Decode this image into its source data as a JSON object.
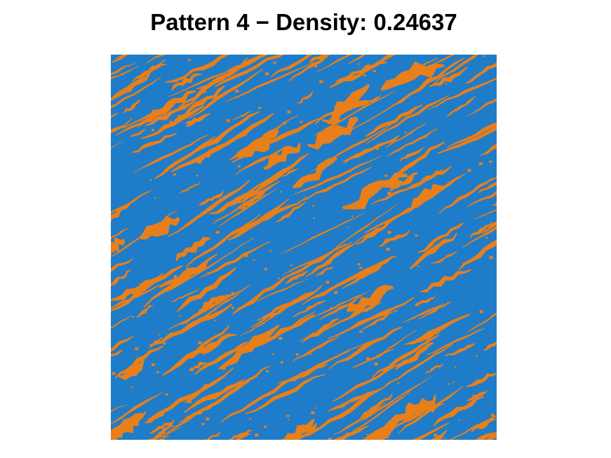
{
  "title": "Pattern 4 − Density: 0.24637",
  "pattern": {
    "density": 0.24637,
    "background_color": "#1f7cc8",
    "foreground_color": "#e87f1a",
    "orientation": "diagonal streaks rising from lower-left to upper-right"
  }
}
